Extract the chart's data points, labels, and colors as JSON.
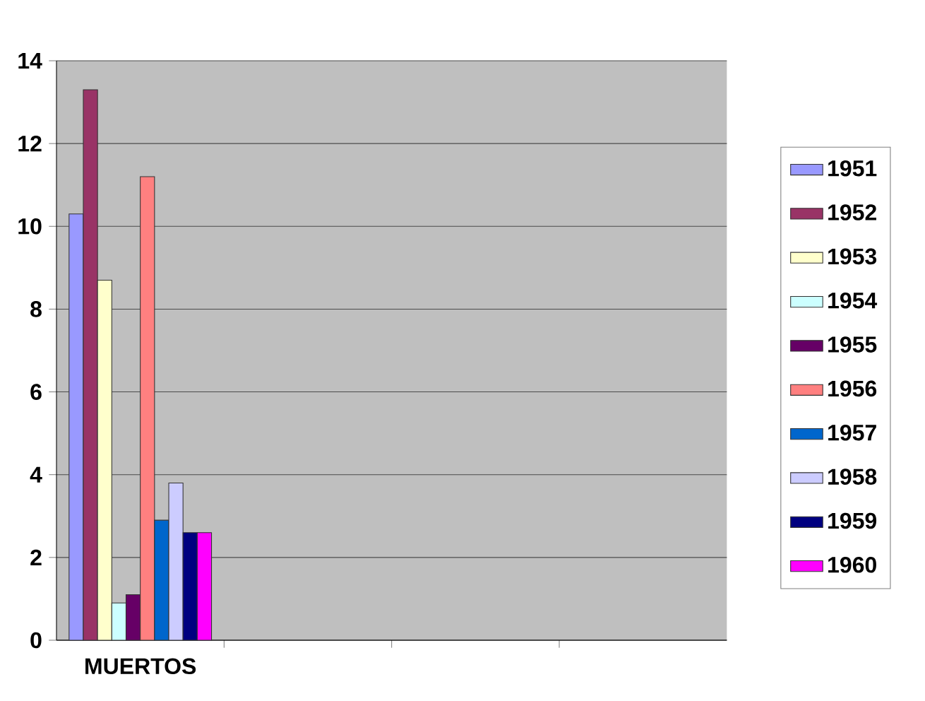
{
  "chart_data": {
    "type": "bar",
    "categories": [
      "MUERTOS",
      null,
      null,
      null
    ],
    "series": [
      {
        "name": "1951",
        "color": "#9999ff",
        "values": [
          10.3,
          null,
          null,
          null
        ]
      },
      {
        "name": "1952",
        "color": "#993366",
        "values": [
          13.3,
          null,
          null,
          null
        ]
      },
      {
        "name": "1953",
        "color": "#ffffcc",
        "values": [
          8.7,
          null,
          null,
          null
        ]
      },
      {
        "name": "1954",
        "color": "#ccffff",
        "values": [
          0.9,
          null,
          null,
          null
        ]
      },
      {
        "name": "1955",
        "color": "#660066",
        "values": [
          1.1,
          null,
          null,
          null
        ]
      },
      {
        "name": "1956",
        "color": "#ff8080",
        "values": [
          11.2,
          null,
          null,
          null
        ]
      },
      {
        "name": "1957",
        "color": "#0066cc",
        "values": [
          2.9,
          null,
          null,
          null
        ]
      },
      {
        "name": "1958",
        "color": "#ccccff",
        "values": [
          3.8,
          null,
          null,
          null
        ]
      },
      {
        "name": "1959",
        "color": "#000080",
        "values": [
          2.6,
          null,
          null,
          null
        ]
      },
      {
        "name": "1960",
        "color": "#ff00ff",
        "values": [
          2.6,
          null,
          null,
          null
        ]
      }
    ],
    "ylim": [
      0,
      14
    ],
    "yticks": [
      0,
      2,
      4,
      6,
      8,
      10,
      12,
      14
    ],
    "grid": "y",
    "legend": "right"
  }
}
